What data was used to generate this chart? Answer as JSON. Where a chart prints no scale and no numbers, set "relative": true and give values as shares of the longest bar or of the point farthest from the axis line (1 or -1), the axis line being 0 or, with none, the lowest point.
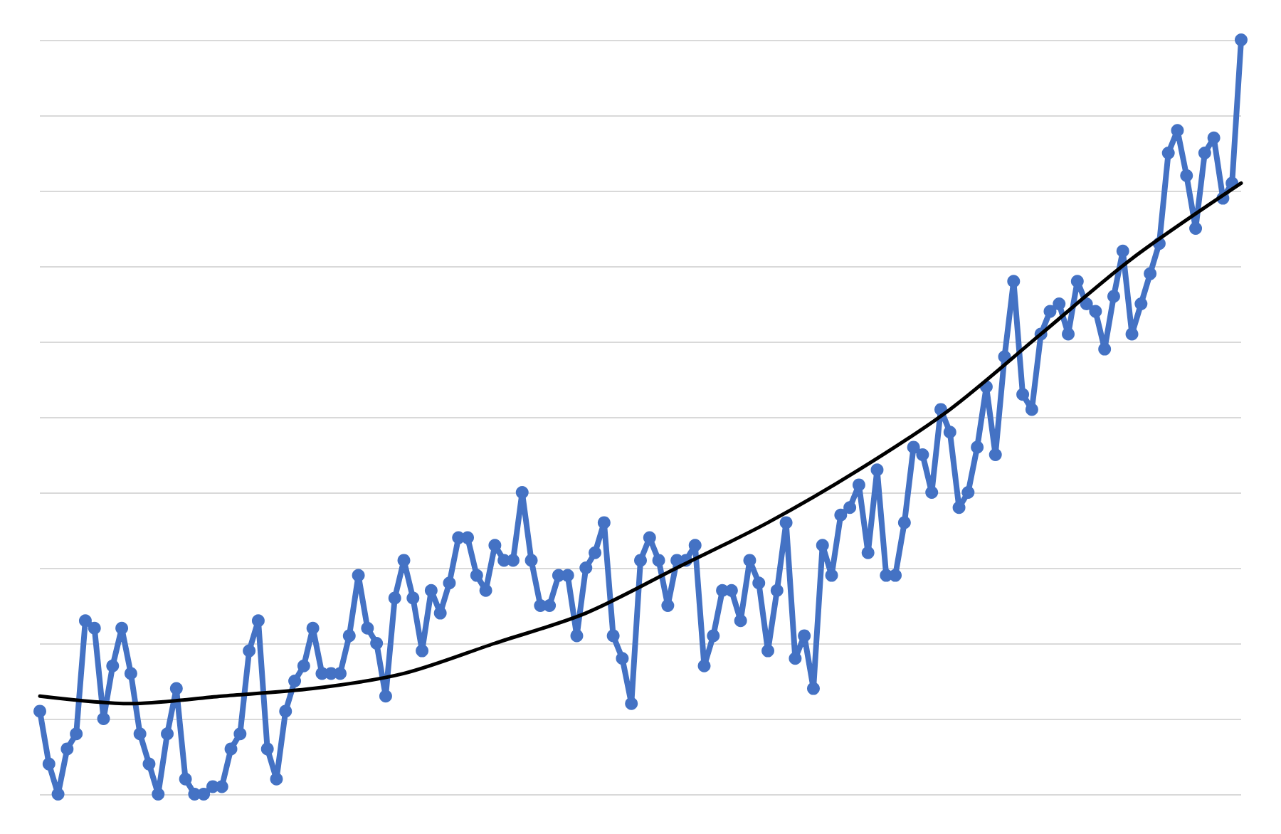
{
  "chart_data": {
    "type": "line",
    "relative": true,
    "grid": "y",
    "marker": "circle",
    "line_style": "solid",
    "categories": [
      null,
      null,
      null,
      null,
      null,
      null,
      null,
      null,
      null,
      null,
      null,
      null,
      null,
      null,
      null,
      null,
      null,
      null,
      null,
      null,
      null,
      null,
      null,
      null,
      null,
      null,
      null,
      null,
      null,
      null,
      null,
      null,
      null,
      null,
      null,
      null,
      null,
      null,
      null,
      null,
      null,
      null,
      null,
      null,
      null,
      null,
      null,
      null,
      null,
      null,
      null,
      null,
      null,
      null,
      null,
      null,
      null,
      null,
      null,
      null,
      null,
      null,
      null,
      null,
      null,
      null,
      null,
      null,
      null,
      null,
      null,
      null,
      null,
      null,
      null,
      null,
      null,
      null,
      null,
      null,
      null,
      null,
      null,
      null,
      null,
      null,
      null,
      null,
      null,
      null,
      null,
      null,
      null,
      null,
      null,
      null,
      null,
      null,
      null,
      null,
      null,
      null,
      null,
      null,
      null,
      null,
      null,
      null,
      null,
      null,
      null,
      null,
      null,
      null,
      null,
      null,
      null,
      null,
      null,
      null,
      null,
      null,
      null,
      null,
      null,
      null,
      null,
      null,
      null,
      null,
      null,
      null,
      null
    ],
    "series": [
      {
        "type": "line",
        "color": "#4472c4",
        "values": [
          0.11,
          0.04,
          0,
          0.06,
          0.08,
          0.23,
          0.22,
          0.1,
          0.17,
          0.22,
          0.16,
          0.08,
          0.04,
          0,
          0.08,
          0.14,
          0.02,
          0,
          0,
          0.01,
          0.01,
          0.06,
          0.08,
          0.19,
          0.23,
          0.06,
          0.02,
          0.11,
          0.15,
          0.17,
          0.22,
          0.16,
          0.16,
          0.16,
          0.21,
          0.29,
          0.22,
          0.2,
          0.13,
          0.26,
          0.31,
          0.26,
          0.19,
          0.27,
          0.24,
          0.28,
          0.34,
          0.34,
          0.29,
          0.27,
          0.33,
          0.31,
          0.31,
          0.4,
          0.31,
          0.25,
          0.25,
          0.29,
          0.29,
          0.21,
          0.3,
          0.32,
          0.36,
          0.21,
          0.18,
          0.12,
          0.31,
          0.34,
          0.31,
          0.25,
          0.31,
          0.31,
          0.33,
          0.17,
          0.21,
          0.27,
          0.27,
          0.23,
          0.31,
          0.28,
          0.19,
          0.27,
          0.36,
          0.18,
          0.21,
          0.14,
          0.33,
          0.29,
          0.37,
          0.38,
          0.41,
          0.32,
          0.43,
          0.29,
          0.29,
          0.36,
          0.46,
          0.45,
          0.4,
          0.51,
          0.48,
          0.38,
          0.4,
          0.46,
          0.54,
          0.45,
          0.58,
          0.68,
          0.53,
          0.51,
          0.61,
          0.64,
          0.65,
          0.61,
          0.68,
          0.65,
          0.64,
          0.59,
          0.66,
          0.72,
          0.61,
          0.65,
          0.69,
          0.73,
          0.85,
          0.88,
          0.82,
          0.75,
          0.85,
          0.87,
          0.79,
          0.81,
          1
        ]
      },
      {
        "type": "line",
        "color": "#000000",
        "marker": "none",
        "values": [
          0.13,
          null,
          null,
          null,
          null,
          null,
          null,
          null,
          null,
          null,
          0.12,
          null,
          null,
          null,
          null,
          null,
          null,
          null,
          null,
          null,
          0.13,
          null,
          null,
          null,
          null,
          null,
          null,
          null,
          null,
          null,
          0.14,
          null,
          null,
          null,
          null,
          null,
          null,
          null,
          null,
          null,
          0.16,
          null,
          null,
          null,
          null,
          null,
          null,
          null,
          null,
          null,
          0.2,
          null,
          null,
          null,
          null,
          null,
          null,
          null,
          null,
          null,
          0.24,
          null,
          null,
          null,
          null,
          null,
          null,
          null,
          null,
          null,
          0.3,
          null,
          null,
          null,
          null,
          null,
          null,
          null,
          null,
          null,
          0.36,
          null,
          null,
          null,
          null,
          null,
          null,
          null,
          null,
          null,
          0.43,
          null,
          null,
          null,
          null,
          null,
          null,
          null,
          null,
          null,
          0.51,
          null,
          null,
          null,
          null,
          null,
          null,
          null,
          null,
          null,
          0.61,
          null,
          null,
          null,
          null,
          null,
          null,
          null,
          null,
          null,
          0.71,
          null,
          null,
          null,
          null,
          null,
          null,
          null,
          null,
          null,
          null,
          null,
          0.81
        ]
      }
    ]
  }
}
